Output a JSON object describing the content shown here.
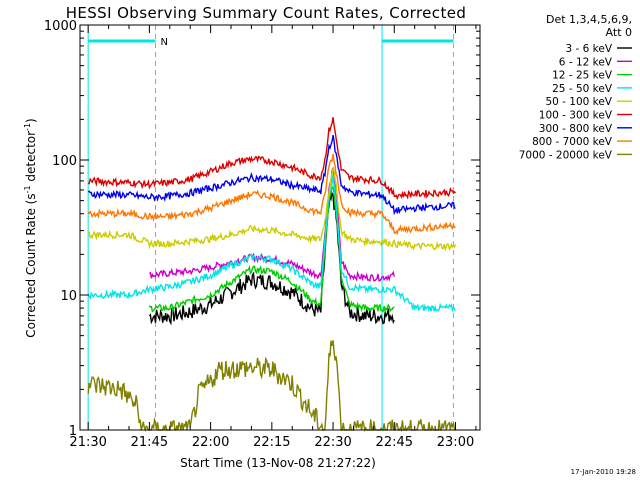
{
  "chart_data": {
    "type": "line",
    "title": "HESSI Observing Summary Count Rates, Corrected",
    "xlabel": "Start Time (13-Nov-08 21:27:22)",
    "ylabel": "Corrected Count Rate (s",
    "ylabel_sup1": "-1",
    "ylabel_mid": " detector",
    "ylabel_sup2": "-1",
    "ylabel_end": ")",
    "y_scale": "log",
    "ylim": [
      1,
      1000
    ],
    "xlim_minutes": [
      -2,
      96
    ],
    "x_ticks": [
      "21:30",
      "21:45",
      "22:00",
      "22:15",
      "22:30",
      "22:45",
      "23:00"
    ],
    "x_tick_minutes": [
      0,
      15,
      30,
      45,
      60,
      75,
      90
    ],
    "y_ticks": [
      "1",
      "10",
      "100",
      "1000"
    ],
    "y_tick_values": [
      1,
      10,
      100,
      1000
    ],
    "legend_header": [
      "Det 1,3,4,5,6,9,",
      "Att 0"
    ],
    "legend_position": "right",
    "bar_marker_label": "N",
    "night_intervals_minutes": [
      [
        0,
        16.5
      ],
      [
        72,
        89.5
      ]
    ],
    "series": [
      {
        "name": "3 - 6 keV",
        "color": "#000000",
        "x": [
          15,
          20,
          25,
          30,
          35,
          40,
          45,
          50,
          55,
          57,
          58,
          59,
          60,
          61,
          62,
          64,
          68,
          72,
          75
        ],
        "y": [
          7,
          7,
          7.5,
          8.5,
          10.5,
          13,
          12.5,
          10.5,
          7.8,
          7.5,
          20,
          45,
          55,
          32,
          12,
          7.5,
          7,
          7,
          7.2
        ]
      },
      {
        "name": "6 - 12 keV",
        "color": "#cc00cc",
        "x": [
          15,
          20,
          25,
          30,
          35,
          40,
          45,
          50,
          55,
          57,
          58,
          59,
          60,
          61,
          62,
          64,
          68,
          72,
          75
        ],
        "y": [
          14,
          14.5,
          15,
          16,
          17.5,
          19,
          18.5,
          17,
          14.5,
          14,
          28,
          60,
          85,
          45,
          18,
          14,
          13.5,
          13.5,
          14
        ]
      },
      {
        "name": "12 - 25 keV",
        "color": "#00cc00",
        "x": [
          15,
          20,
          25,
          30,
          35,
          40,
          45,
          50,
          55,
          57,
          58,
          59,
          60,
          61,
          62,
          64,
          68,
          72,
          75
        ],
        "y": [
          8,
          8,
          9,
          10,
          12.5,
          15.5,
          15,
          12.5,
          9,
          8.5,
          22,
          48,
          65,
          35,
          14,
          8.5,
          8,
          8,
          8
        ]
      },
      {
        "name": "25 - 50 keV",
        "color": "#00e5e5",
        "x": [
          0,
          10,
          15,
          20,
          25,
          30,
          35,
          40,
          45,
          50,
          55,
          57,
          58,
          59,
          60,
          61,
          62,
          64,
          68,
          72,
          75,
          80,
          85,
          90
        ],
        "y": [
          10,
          10,
          11,
          11.5,
          12.5,
          14,
          16.5,
          19,
          18.5,
          15.5,
          12,
          11.5,
          25,
          55,
          75,
          40,
          16,
          11.5,
          11,
          11,
          11,
          8,
          8,
          8
        ]
      },
      {
        "name": "50 - 100 keV",
        "color": "#cccc00",
        "x": [
          0,
          10,
          15,
          20,
          25,
          30,
          35,
          40,
          45,
          50,
          55,
          57,
          58,
          59,
          60,
          61,
          62,
          64,
          68,
          72,
          75,
          80,
          85,
          90
        ],
        "y": [
          28,
          28,
          24,
          24,
          25,
          26,
          28,
          31,
          30,
          28,
          26,
          26,
          35,
          60,
          90,
          55,
          30,
          26,
          25,
          25,
          24,
          23,
          23,
          23
        ]
      },
      {
        "name": "100 - 300 keV",
        "color": "#dd0000",
        "x": [
          0,
          10,
          15,
          20,
          25,
          30,
          35,
          40,
          45,
          50,
          55,
          57,
          58,
          59,
          60,
          61,
          62,
          64,
          68,
          72,
          75,
          80,
          85,
          90
        ],
        "y": [
          70,
          68,
          66,
          68,
          72,
          82,
          95,
          102,
          98,
          88,
          76,
          75,
          100,
          165,
          200,
          130,
          85,
          74,
          72,
          70,
          55,
          56,
          57,
          58
        ]
      },
      {
        "name": "300 - 800 keV",
        "color": "#0000ee",
        "x": [
          0,
          10,
          15,
          20,
          25,
          30,
          35,
          40,
          45,
          50,
          55,
          57,
          58,
          59,
          60,
          61,
          62,
          64,
          68,
          72,
          75,
          80,
          85,
          90
        ],
        "y": [
          56,
          55,
          53,
          54,
          57,
          62,
          68,
          74,
          72,
          65,
          60,
          59,
          80,
          125,
          145,
          100,
          66,
          58,
          56,
          55,
          42,
          44,
          45,
          46
        ]
      },
      {
        "name": "800 - 7000 keV",
        "color": "#ff7700",
        "x": [
          0,
          10,
          15,
          20,
          25,
          30,
          35,
          40,
          45,
          50,
          55,
          57,
          58,
          59,
          60,
          61,
          62,
          64,
          68,
          72,
          75,
          80,
          85,
          90
        ],
        "y": [
          40,
          40,
          38,
          38,
          40,
          44,
          50,
          56,
          54,
          48,
          42,
          41,
          55,
          90,
          108,
          75,
          48,
          41,
          40,
          40,
          30,
          31,
          32,
          33
        ]
      },
      {
        "name": "7000 - 20000 keV",
        "color": "#808000",
        "x": [
          0,
          8,
          12,
          13,
          25,
          27,
          30,
          32,
          40,
          45,
          50,
          55,
          58,
          59,
          60,
          61,
          62,
          75,
          85,
          90
        ],
        "y": [
          2.2,
          2,
          1.5,
          1,
          1,
          1.8,
          2.3,
          2.8,
          2.9,
          2.8,
          2.2,
          1.3,
          1,
          3.2,
          5,
          3,
          1,
          1,
          1,
          1
        ]
      }
    ]
  }
}
